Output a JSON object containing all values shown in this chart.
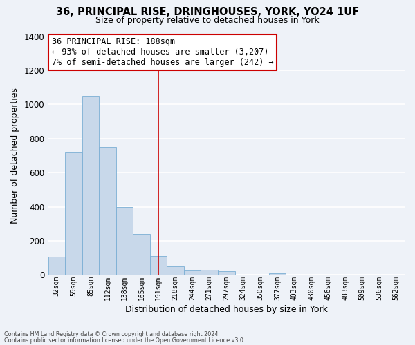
{
  "title": "36, PRINCIPAL RISE, DRINGHOUSES, YORK, YO24 1UF",
  "subtitle": "Size of property relative to detached houses in York",
  "xlabel": "Distribution of detached houses by size in York",
  "ylabel": "Number of detached properties",
  "bar_color": "#c8d8ea",
  "bar_edge_color": "#7bafd4",
  "categories": [
    "32sqm",
    "59sqm",
    "85sqm",
    "112sqm",
    "138sqm",
    "165sqm",
    "191sqm",
    "218sqm",
    "244sqm",
    "271sqm",
    "297sqm",
    "324sqm",
    "350sqm",
    "377sqm",
    "403sqm",
    "430sqm",
    "456sqm",
    "483sqm",
    "509sqm",
    "536sqm",
    "562sqm"
  ],
  "values": [
    105,
    720,
    1050,
    750,
    400,
    240,
    110,
    50,
    25,
    30,
    20,
    0,
    0,
    10,
    0,
    0,
    0,
    0,
    0,
    0,
    0
  ],
  "ylim": [
    0,
    1400
  ],
  "yticks": [
    0,
    200,
    400,
    600,
    800,
    1000,
    1200,
    1400
  ],
  "vline_index": 6,
  "vline_color": "#cc0000",
  "annotation_title": "36 PRINCIPAL RISE: 188sqm",
  "annotation_line1": "← 93% of detached houses are smaller (3,207)",
  "annotation_line2": "7% of semi-detached houses are larger (242) →",
  "annotation_box_color": "#ffffff",
  "annotation_box_edge": "#cc0000",
  "footer_line1": "Contains HM Land Registry data © Crown copyright and database right 2024.",
  "footer_line2": "Contains public sector information licensed under the Open Government Licence v3.0.",
  "background_color": "#eef2f8",
  "grid_color": "#ffffff"
}
